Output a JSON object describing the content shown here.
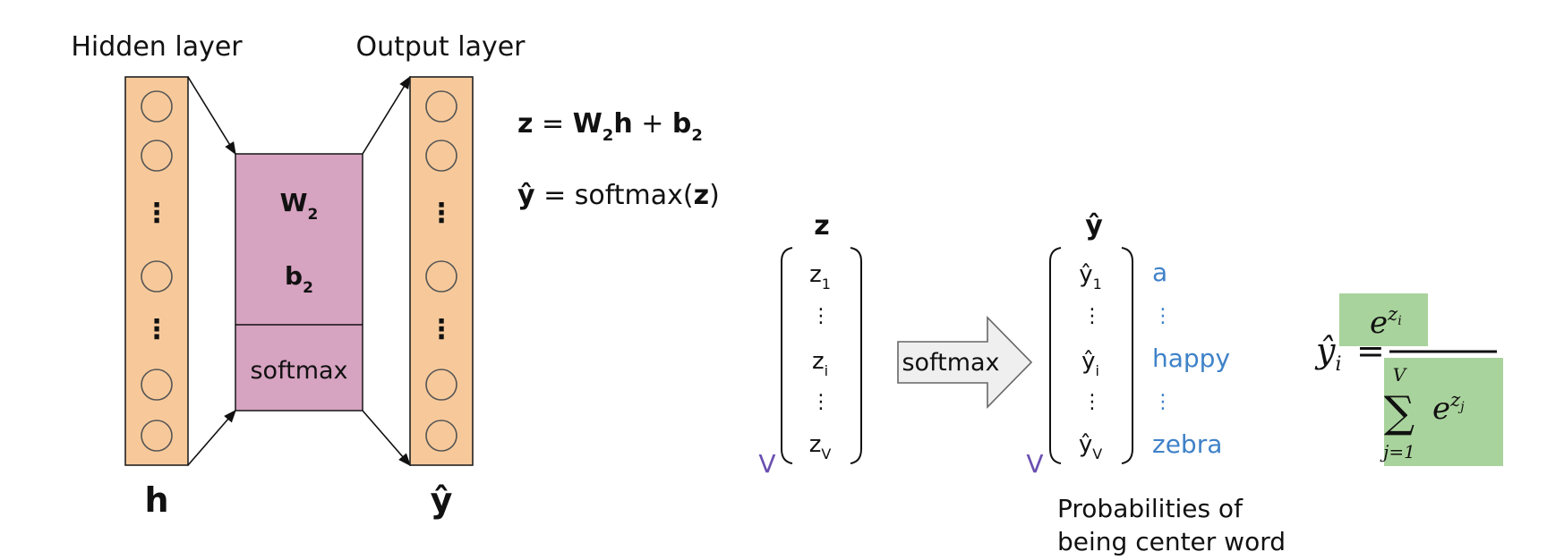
{
  "network": {
    "hidden_label": "Hidden layer",
    "output_label": "Output layer",
    "hidden_symbol": "h",
    "output_symbol": "ŷ",
    "weight_label": "W",
    "weight_sub": "2",
    "bias_label": "b",
    "bias_sub": "2",
    "softmax_label": "softmax",
    "dots": "⋮"
  },
  "equations": {
    "eq1": {
      "lhs": "z",
      "eq": " = ",
      "w": "W",
      "w_sub": "2",
      "h": "h",
      "plus": " + ",
      "b": "b",
      "b_sub": "2"
    },
    "eq2": {
      "lhs": "ŷ",
      "mid": " = softmax(",
      "arg": "z",
      "close": ")"
    }
  },
  "z_vector": {
    "header": "z",
    "entries": [
      {
        "base": "z",
        "sub": "1"
      },
      {
        "base": "z",
        "sub": "i"
      },
      {
        "base": "z",
        "sub": "V"
      }
    ],
    "dim_label": "V",
    "dots": "⋮"
  },
  "arrow_label": "softmax",
  "yhat_vector": {
    "header": "ŷ",
    "entries": [
      {
        "base": "ŷ",
        "sub": "1"
      },
      {
        "base": "ŷ",
        "sub": "i"
      },
      {
        "base": "ŷ",
        "sub": "V"
      }
    ],
    "dim_label": "V",
    "dots": "⋮"
  },
  "vocab_words": [
    "a",
    "happy",
    "zebra"
  ],
  "vocab_dots": "⋮",
  "caption": {
    "line1": "Probabilities of",
    "line2": "being center word"
  },
  "formula": {
    "lhs": "ŷ",
    "lhs_sub": "i",
    "eq": "=",
    "num_base": "e",
    "num_exp": "z",
    "num_exp_sub": "i",
    "den_base": "e",
    "den_exp": "z",
    "den_exp_sub": "j",
    "sum_symbol": "∑",
    "sum_upper": "V",
    "sum_lower": "j=1"
  },
  "colors": {
    "layer_fill": "#f7c99a",
    "matrix_fill": "#d6a3c0",
    "vocab_text": "#3f82c8",
    "dim_label": "#6a4fb0",
    "formula_highlight": "#a9d39c"
  }
}
